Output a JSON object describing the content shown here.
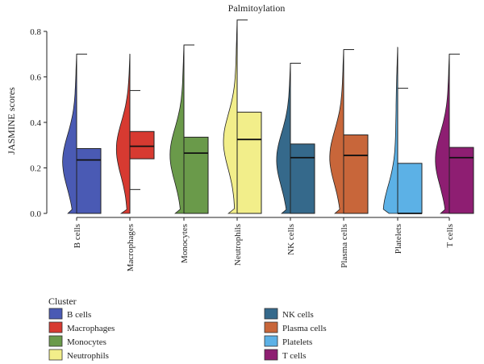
{
  "chart_data": {
    "type": "half-violin box plot",
    "title": "Palmitoylation",
    "ylabel": "JASMINE scores",
    "xlabel": "",
    "ylim": [
      0,
      0.86
    ],
    "yticks": [
      "0.0",
      "0.2",
      "0.4",
      "0.6",
      "0.8"
    ],
    "categories": [
      "B cells",
      "Macrophages",
      "Monocytes",
      "Neutrophils",
      "NK cells",
      "Plasma cells",
      "Platelets",
      "T cells"
    ],
    "series": [
      {
        "name": "B cells",
        "color": "#4a5ab4",
        "min": 0.0,
        "q1": 0.0,
        "median": 0.235,
        "q3": 0.285,
        "max": 0.7,
        "whisker_low": null,
        "whisker_high": 0.7
      },
      {
        "name": "Macrophages",
        "color": "#d73a31",
        "min": 0.0,
        "q1": 0.24,
        "median": 0.295,
        "q3": 0.36,
        "max": 0.7,
        "whisker_low": 0.105,
        "whisker_high": 0.54
      },
      {
        "name": "Monocytes",
        "color": "#6a9a4a",
        "min": 0.0,
        "q1": 0.0,
        "median": 0.265,
        "q3": 0.335,
        "max": 0.74,
        "whisker_low": null,
        "whisker_high": 0.74
      },
      {
        "name": "Neutrophils",
        "color": "#f2ee8a",
        "min": 0.0,
        "q1": 0.0,
        "median": 0.325,
        "q3": 0.445,
        "max": 0.85,
        "whisker_low": null,
        "whisker_high": 0.85
      },
      {
        "name": "NK cells",
        "color": "#35698b",
        "min": 0.0,
        "q1": 0.0,
        "median": 0.245,
        "q3": 0.305,
        "max": 0.66,
        "whisker_low": null,
        "whisker_high": 0.66
      },
      {
        "name": "Plasma cells",
        "color": "#c8663a",
        "min": 0.0,
        "q1": 0.0,
        "median": 0.255,
        "q3": 0.345,
        "max": 0.72,
        "whisker_low": null,
        "whisker_high": 0.72
      },
      {
        "name": "Platelets",
        "color": "#5cb1e6",
        "min": 0.0,
        "q1": 0.0,
        "median": 0.0,
        "q3": 0.22,
        "max": 0.73,
        "whisker_low": null,
        "whisker_high": 0.55
      },
      {
        "name": "T cells",
        "color": "#8e1e72",
        "min": 0.0,
        "q1": 0.0,
        "median": 0.245,
        "q3": 0.29,
        "max": 0.7,
        "whisker_low": null,
        "whisker_high": 0.7
      }
    ],
    "legend": {
      "title": "Cluster",
      "placement": "bottom",
      "items": [
        "B cells",
        "Macrophages",
        "Monocytes",
        "Neutrophils",
        "NK cells",
        "Plasma cells",
        "Platelets",
        "T cells"
      ]
    },
    "grid": false
  }
}
